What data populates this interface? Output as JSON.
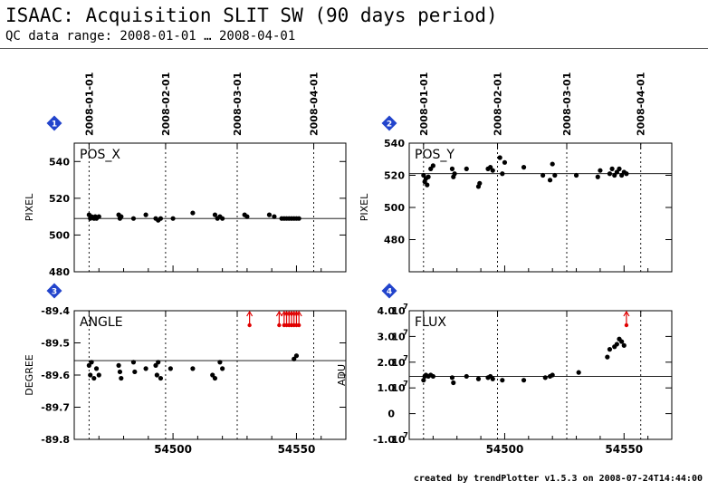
{
  "header": {
    "title": "ISAAC: Acquisition SLIT SW (90 days period)",
    "subtitle": "QC data range: 2008-01-01 … 2008-04-01"
  },
  "footer": {
    "credit": "created by trendPlotter v1.5.3 on 2008-07-24T14:44:00"
  },
  "colors": {
    "points": "#000000",
    "outlier": "#e00000",
    "badge": "#2244cc",
    "ref_line": "#000000"
  },
  "chart_data": [
    {
      "type": "scatter",
      "badge": "1",
      "label": "POS_X",
      "ylabel": "PIXEL",
      "date_ticks": [
        "2008-01-01",
        "2008-02-01",
        "2008-03-01",
        "2008-04-01"
      ],
      "date_tick_mjd": [
        54466,
        54497,
        54526,
        54557
      ],
      "xlim": [
        54460,
        54570
      ],
      "x_ticks": [
        54500,
        54550
      ],
      "x_tick_labels": false,
      "ylim": [
        480,
        550
      ],
      "y_ticks": [
        480,
        500,
        520,
        540
      ],
      "y_tick_labels": [
        "480",
        "500",
        "520",
        "540"
      ],
      "reference": 509,
      "outliers_above": [],
      "x": [
        54466,
        54466.5,
        54467,
        54468,
        54468.5,
        54469,
        54470,
        54478,
        54478.5,
        54479,
        54484,
        54489,
        54493,
        54494,
        54495,
        54500,
        54508,
        54517,
        54518,
        54519,
        54520,
        54529,
        54530,
        54539,
        54541,
        54544,
        54545,
        54546,
        54547,
        54548,
        54549,
        54550,
        54551
      ],
      "y": [
        511,
        509,
        510,
        509,
        510,
        509,
        510,
        511,
        509,
        510,
        509,
        511,
        509,
        508,
        509,
        509,
        512,
        511,
        509,
        510,
        509,
        511,
        510,
        511,
        510,
        509,
        509,
        509,
        509,
        509,
        509,
        509,
        509
      ]
    },
    {
      "type": "scatter",
      "badge": "2",
      "label": "POS_Y",
      "ylabel": "PIXEL",
      "date_ticks": [
        "2008-01-01",
        "2008-02-01",
        "2008-03-01",
        "2008-04-01"
      ],
      "date_tick_mjd": [
        54466,
        54497,
        54526,
        54557
      ],
      "xlim": [
        54460,
        54570
      ],
      "x_ticks": [
        54500,
        54550
      ],
      "x_tick_labels": false,
      "ylim": [
        460,
        540
      ],
      "y_ticks": [
        480,
        500,
        520,
        540
      ],
      "y_tick_labels": [
        "480",
        "500",
        "520",
        "540"
      ],
      "reference": 521,
      "outliers_above": [],
      "x": [
        54466,
        54466.5,
        54467,
        54467.5,
        54468,
        54469,
        54470,
        54478,
        54478.5,
        54479,
        54484,
        54489,
        54489.5,
        54493,
        54494,
        54495,
        54498,
        54499,
        54500,
        54508,
        54516,
        54519,
        54520,
        54521,
        54530,
        54539,
        54540,
        54544,
        54545,
        54546,
        54547,
        54548,
        54549,
        54550,
        54551
      ],
      "y": [
        520,
        516,
        518,
        514,
        519,
        524,
        526,
        524,
        519,
        521,
        524,
        513,
        515,
        524,
        525,
        523,
        531,
        521,
        528,
        525,
        520,
        517,
        527,
        520,
        520,
        519,
        523,
        521,
        524,
        520,
        522,
        524,
        520,
        522,
        521
      ]
    },
    {
      "type": "scatter",
      "badge": "3",
      "label": "ANGLE",
      "ylabel": "DEGREE",
      "date_ticks": [],
      "date_tick_mjd": [
        54466,
        54497,
        54526,
        54557
      ],
      "xlim": [
        54460,
        54570
      ],
      "x_ticks": [
        54500,
        54550
      ],
      "x_tick_labels": true,
      "ylim": [
        -89.8,
        -89.4
      ],
      "y_ticks": [
        -89.8,
        -89.7,
        -89.6,
        -89.5,
        -89.4
      ],
      "y_tick_labels": [
        "-89.8",
        "-89.7",
        "-89.6",
        "-89.5",
        "-89.4"
      ],
      "reference": -89.555,
      "outliers_above": [
        54531,
        54543,
        54545,
        54546,
        54547,
        54548,
        54549,
        54550,
        54551
      ],
      "x": [
        54466,
        54466.5,
        54467,
        54468,
        54469,
        54470,
        54478,
        54478.5,
        54479,
        54484,
        54484.5,
        54489,
        54493,
        54493.5,
        54494,
        54495,
        54499,
        54508,
        54516,
        54517,
        54519,
        54520,
        54549,
        54550
      ],
      "y": [
        -89.57,
        -89.6,
        -89.56,
        -89.61,
        -89.58,
        -89.6,
        -89.57,
        -89.59,
        -89.61,
        -89.56,
        -89.59,
        -89.58,
        -89.57,
        -89.6,
        -89.56,
        -89.61,
        -89.58,
        -89.58,
        -89.6,
        -89.61,
        -89.56,
        -89.58,
        -89.55,
        -89.54
      ]
    },
    {
      "type": "scatter",
      "badge": "4",
      "label": "FLUX",
      "ylabel": "ADU",
      "date_ticks": [],
      "date_tick_mjd": [
        54466,
        54497,
        54526,
        54557
      ],
      "xlim": [
        54460,
        54570
      ],
      "x_ticks": [
        54500,
        54550
      ],
      "x_tick_labels": true,
      "ylim": [
        -10000000.0,
        40000000.0
      ],
      "y_ticks": [
        -10000000.0,
        0,
        10000000.0,
        20000000.0,
        30000000.0,
        40000000.0
      ],
      "y_tick_mantissas": [
        "-1.0",
        "0",
        "1.0",
        "2.0",
        "3.0",
        "4.0"
      ],
      "y_tick_exponent": "7",
      "reference": 14500000.0,
      "outliers_above": [
        54551
      ],
      "x": [
        54466,
        54466.5,
        54467,
        54468,
        54469,
        54470,
        54478,
        54478.5,
        54484,
        54489,
        54493,
        54494,
        54495,
        54499,
        54508,
        54517,
        54519,
        54520,
        54531,
        54543,
        54544,
        54546,
        54547,
        54548,
        54549,
        54550
      ],
      "y": [
        13000000.0,
        14500000.0,
        15000000.0,
        14500000.0,
        15000000.0,
        14500000.0,
        14000000.0,
        12000000.0,
        14500000.0,
        13500000.0,
        14000000.0,
        14500000.0,
        13500000.0,
        13000000.0,
        13000000.0,
        14000000.0,
        14500000.0,
        15000000.0,
        16000000.0,
        22000000.0,
        25000000.0,
        26000000.0,
        27000000.0,
        29000000.0,
        28000000.0,
        26500000.0
      ]
    }
  ]
}
